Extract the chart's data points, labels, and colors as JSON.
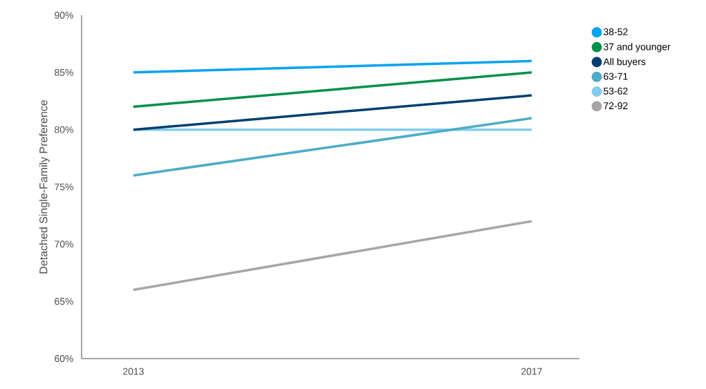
{
  "chart_data": {
    "type": "line",
    "ylabel": "Detached Single-Family Preference",
    "categories": [
      "2013",
      "2017"
    ],
    "series": [
      {
        "name": "38-52",
        "color": "#00a3f0",
        "values": [
          85,
          86
        ]
      },
      {
        "name": "37 and younger",
        "color": "#00904a",
        "values": [
          82,
          85
        ]
      },
      {
        "name": "All buyers",
        "color": "#003f72",
        "values": [
          80,
          83
        ]
      },
      {
        "name": "63-71",
        "color": "#4bacc6",
        "values": [
          76,
          81
        ]
      },
      {
        "name": "53-62",
        "color": "#84ccee",
        "values": [
          80,
          80
        ]
      },
      {
        "name": "72-92",
        "color": "#a6a6a6",
        "values": [
          66,
          72
        ]
      }
    ],
    "ylim": [
      60,
      90
    ],
    "yticks": [
      {
        "value": 60,
        "label": "60%"
      },
      {
        "value": 65,
        "label": "65%"
      },
      {
        "value": 70,
        "label": "70%"
      },
      {
        "value": 75,
        "label": "75%"
      },
      {
        "value": 80,
        "label": "80%"
      },
      {
        "value": 85,
        "label": "85%"
      },
      {
        "value": 90,
        "label": "90%"
      }
    ],
    "legend": "right"
  }
}
